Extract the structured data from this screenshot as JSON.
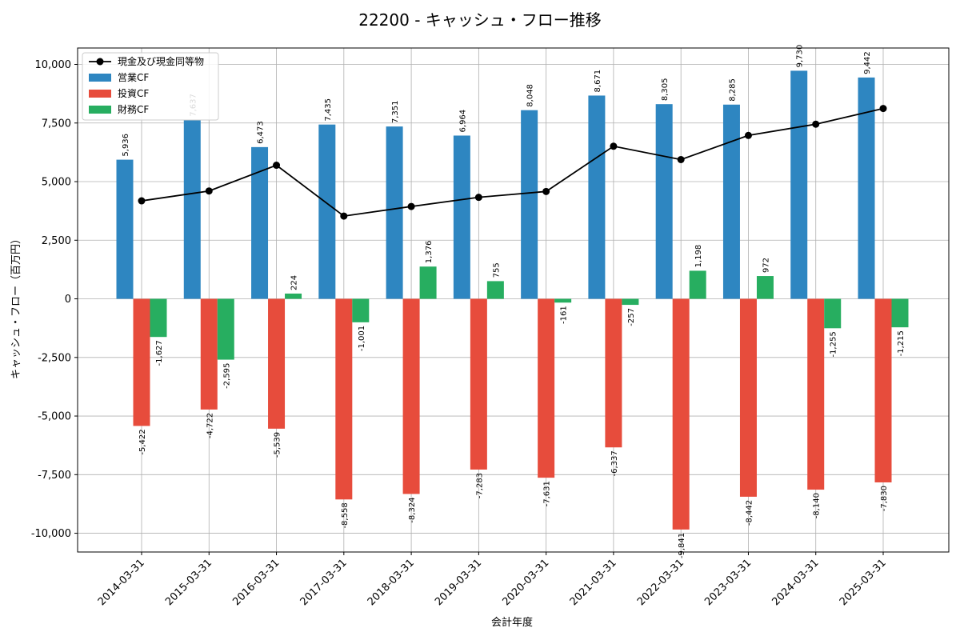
{
  "chart_data": {
    "type": "bar",
    "title": "22200 - キャッシュ・フロー推移",
    "xlabel": "会計年度",
    "ylabel": "キャッシュ・フロー（百万円）",
    "ylim": [
      -10800,
      10700
    ],
    "yticks": [
      -10000,
      -7500,
      -5000,
      -2500,
      0,
      2500,
      5000,
      7500,
      10000
    ],
    "ytick_labels": [
      "-10,000",
      "-7,500",
      "-5,000",
      "-2,500",
      "0",
      "2,500",
      "5,000",
      "7,500",
      "10,000"
    ],
    "grid": true,
    "legend_position": "top-left",
    "categories": [
      "2014-03-31",
      "2015-03-31",
      "2016-03-31",
      "2017-03-31",
      "2018-03-31",
      "2019-03-31",
      "2020-03-31",
      "2021-03-31",
      "2022-03-31",
      "2023-03-31",
      "2024-03-31",
      "2025-03-31"
    ],
    "line_series": {
      "name": "現金及び現金同等物",
      "color": "#000000",
      "values": [
        4180,
        4600,
        5700,
        3530,
        3940,
        4330,
        4580,
        6510,
        5940,
        6970,
        7450,
        8120
      ]
    },
    "series": [
      {
        "name": "営業CF",
        "color": "#2e86c1",
        "values": [
          5936,
          7637,
          6473,
          7435,
          7351,
          6964,
          8048,
          8671,
          8305,
          8285,
          9730,
          9442
        ],
        "labels": [
          "5,936",
          "7,637",
          "6,473",
          "7,435",
          "7,351",
          "6,964",
          "8,048",
          "8,671",
          "8,305",
          "8,285",
          "9,730",
          "9,442"
        ]
      },
      {
        "name": "投資CF",
        "color": "#e74c3c",
        "values": [
          -5422,
          -4722,
          -5539,
          -8558,
          -8324,
          -7283,
          -7631,
          -6337,
          -9841,
          -8442,
          -8140,
          -7830
        ],
        "labels": [
          "-5,422",
          "-4,722",
          "-5,539",
          "-8,558",
          "-8,324",
          "-7,283",
          "-7,631",
          "-6,337",
          "-9,841",
          "-8,442",
          "-8,140",
          "-7,830"
        ]
      },
      {
        "name": "財務CF",
        "color": "#27ae60",
        "values": [
          -1627,
          -2595,
          224,
          -1001,
          1376,
          755,
          -161,
          -257,
          1198,
          972,
          -1255,
          -1215
        ],
        "labels": [
          "-1,627",
          "-2,595",
          "224",
          "-1,001",
          "1,376",
          "755",
          "-161",
          "-257",
          "1,198",
          "972",
          "-1,255",
          "-1,215"
        ]
      }
    ]
  }
}
